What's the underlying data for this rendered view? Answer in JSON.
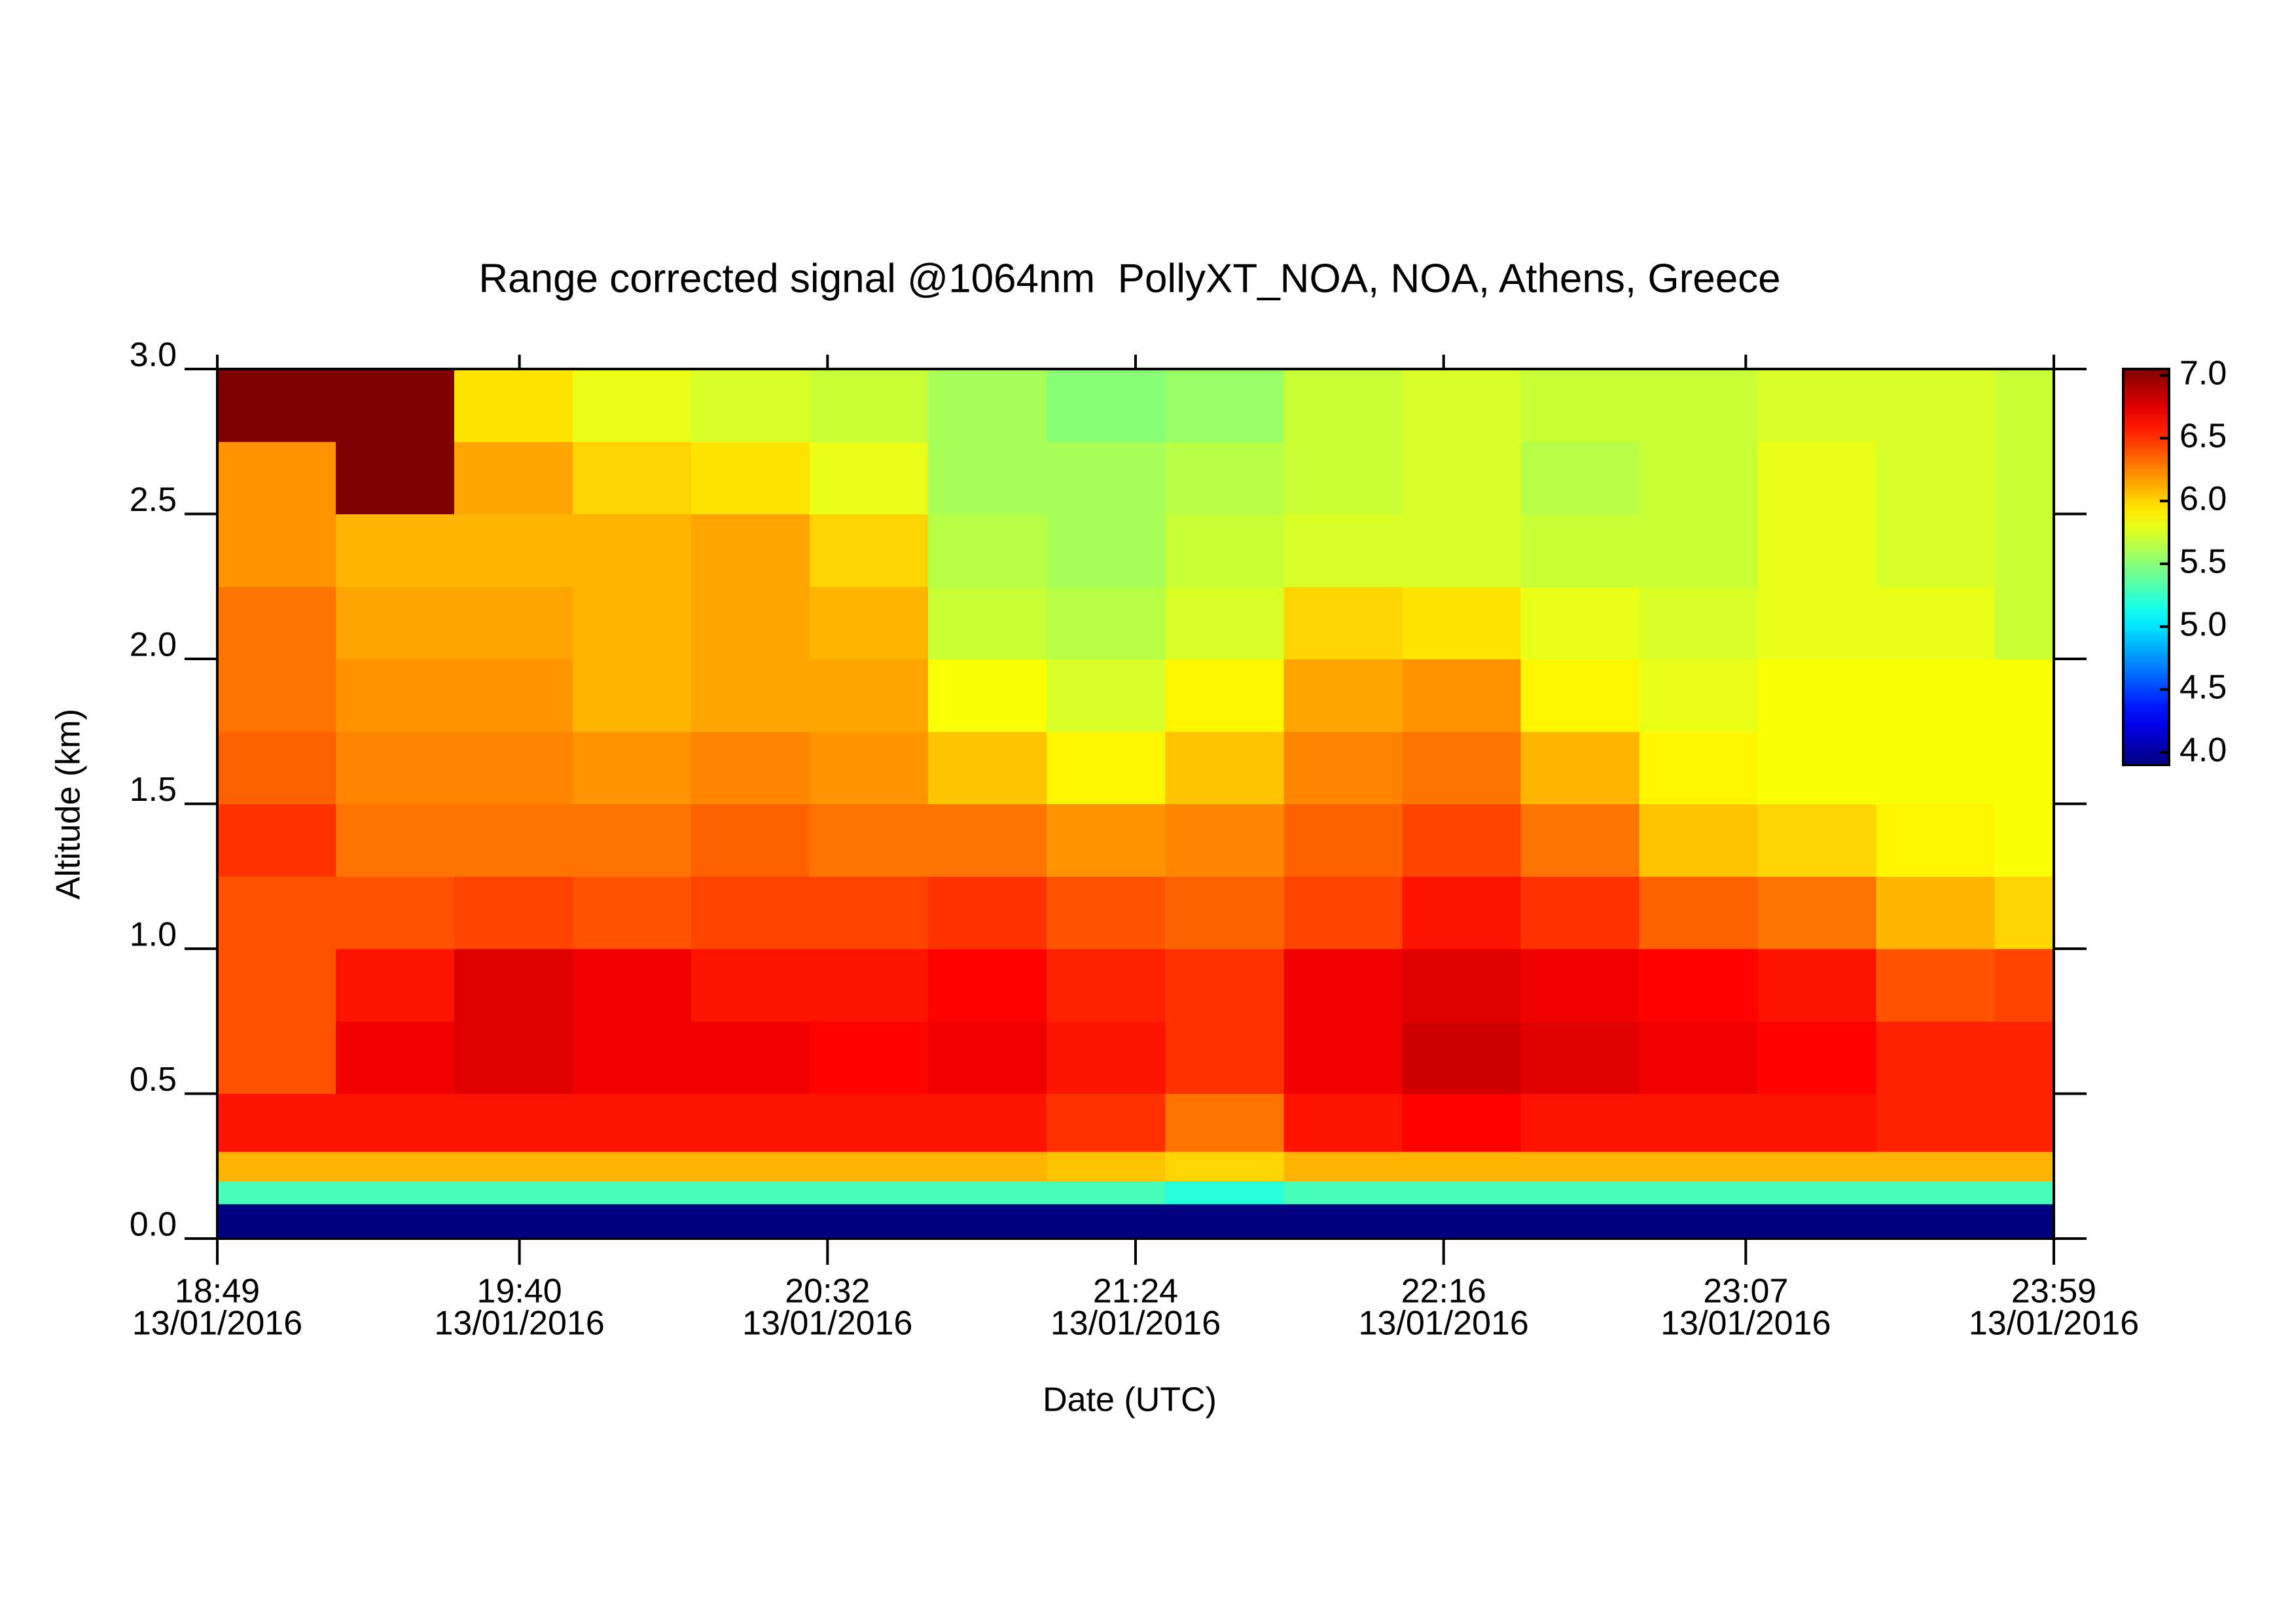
{
  "chart_data": {
    "type": "heatmap",
    "title": "Range corrected signal @1064nm  PollyXT_NOA, NOA, Athens, Greece",
    "xlabel": "Date (UTC)",
    "ylabel": "Altitude (km)",
    "xlim": [
      "18:49",
      "23:59"
    ],
    "xticks": [
      {
        "value": "18:49",
        "date": "13/01/2016"
      },
      {
        "value": "19:40",
        "date": "13/01/2016"
      },
      {
        "value": "20:32",
        "date": "13/01/2016"
      },
      {
        "value": "21:24",
        "date": "13/01/2016"
      },
      {
        "value": "22:16",
        "date": "13/01/2016"
      },
      {
        "value": "23:07",
        "date": "13/01/2016"
      },
      {
        "value": "23:59",
        "date": "13/01/2016"
      }
    ],
    "ylim": [
      0,
      3
    ],
    "yticks": [
      {
        "value": 0,
        "label": "0.0"
      },
      0.5,
      {
        "value": 1,
        "label": "1.0"
      },
      1.5,
      {
        "value": 2,
        "label": "2.0"
      },
      2.5,
      {
        "value": 3,
        "label": "3.0"
      }
    ],
    "colormap": "jet",
    "clim": [
      3.9,
      7.05
    ],
    "cticks": [
      {
        "value": 4,
        "label": "4.0"
      },
      4.5,
      {
        "value": 5,
        "label": "5.0"
      },
      5.5,
      {
        "value": 6,
        "label": "6.0"
      },
      6.5,
      {
        "value": 7,
        "label": "7.0"
      }
    ],
    "xbins": [
      "18:49",
      "19:09",
      "19:29",
      "19:49",
      "20:09",
      "20:29",
      "20:49",
      "21:09",
      "21:29",
      "21:49",
      "22:09",
      "22:29",
      "22:49",
      "23:09",
      "23:29",
      "23:49",
      "23:59"
    ],
    "ybins": [
      0,
      0.12,
      0.2,
      0.3,
      0.5,
      0.75,
      1.0,
      1.25,
      1.5,
      1.75,
      2.0,
      2.25,
      2.5,
      2.75,
      3.0
    ],
    "z": [
      [
        3.9,
        3.9,
        3.9,
        3.9,
        3.9,
        3.9,
        3.9,
        3.9,
        3.9,
        3.9,
        3.9,
        3.9,
        3.9,
        3.9,
        3.9,
        3.9
      ],
      [
        5.3,
        5.3,
        5.3,
        5.3,
        5.3,
        5.3,
        5.3,
        5.3,
        5.2,
        5.3,
        5.3,
        5.3,
        5.3,
        5.3,
        5.3,
        5.3
      ],
      [
        6.1,
        6.1,
        6.1,
        6.1,
        6.1,
        6.1,
        6.1,
        6.05,
        6.0,
        6.1,
        6.1,
        6.1,
        6.1,
        6.1,
        6.1,
        6.1
      ],
      [
        6.6,
        6.6,
        6.6,
        6.6,
        6.6,
        6.6,
        6.6,
        6.5,
        6.3,
        6.6,
        6.65,
        6.6,
        6.6,
        6.6,
        6.55,
        6.55
      ],
      [
        6.4,
        6.7,
        6.75,
        6.7,
        6.7,
        6.65,
        6.7,
        6.6,
        6.5,
        6.7,
        6.8,
        6.75,
        6.7,
        6.65,
        6.55,
        6.55
      ],
      [
        6.4,
        6.6,
        6.75,
        6.7,
        6.6,
        6.6,
        6.65,
        6.55,
        6.5,
        6.7,
        6.75,
        6.7,
        6.65,
        6.6,
        6.4,
        6.45
      ],
      [
        6.4,
        6.4,
        6.45,
        6.4,
        6.45,
        6.45,
        6.5,
        6.4,
        6.35,
        6.45,
        6.6,
        6.5,
        6.35,
        6.3,
        6.1,
        6.0
      ],
      [
        6.5,
        6.3,
        6.3,
        6.3,
        6.35,
        6.3,
        6.3,
        6.2,
        6.25,
        6.35,
        6.45,
        6.3,
        6.05,
        6.0,
        5.9,
        5.85
      ],
      [
        6.35,
        6.25,
        6.25,
        6.2,
        6.25,
        6.2,
        6.05,
        5.9,
        6.05,
        6.25,
        6.3,
        6.1,
        5.9,
        5.85,
        5.85,
        5.85
      ],
      [
        6.3,
        6.2,
        6.2,
        6.1,
        6.15,
        6.15,
        5.85,
        5.75,
        5.9,
        6.15,
        6.2,
        5.9,
        5.8,
        5.85,
        5.85,
        5.85
      ],
      [
        6.3,
        6.15,
        6.15,
        6.1,
        6.15,
        6.1,
        5.7,
        5.65,
        5.75,
        6.0,
        5.95,
        5.8,
        5.75,
        5.8,
        5.8,
        5.7
      ],
      [
        6.2,
        6.1,
        6.1,
        6.1,
        6.15,
        6.0,
        5.65,
        5.6,
        5.7,
        5.75,
        5.75,
        5.7,
        5.7,
        5.8,
        5.75,
        5.7
      ],
      [
        6.2,
        7.05,
        6.15,
        6.0,
        5.95,
        5.8,
        5.6,
        5.6,
        5.65,
        5.7,
        5.75,
        5.65,
        5.7,
        5.8,
        5.75,
        5.7
      ],
      [
        7.05,
        7.05,
        5.95,
        5.8,
        5.75,
        5.7,
        5.6,
        5.5,
        5.55,
        5.7,
        5.75,
        5.7,
        5.7,
        5.75,
        5.75,
        5.7
      ]
    ]
  }
}
